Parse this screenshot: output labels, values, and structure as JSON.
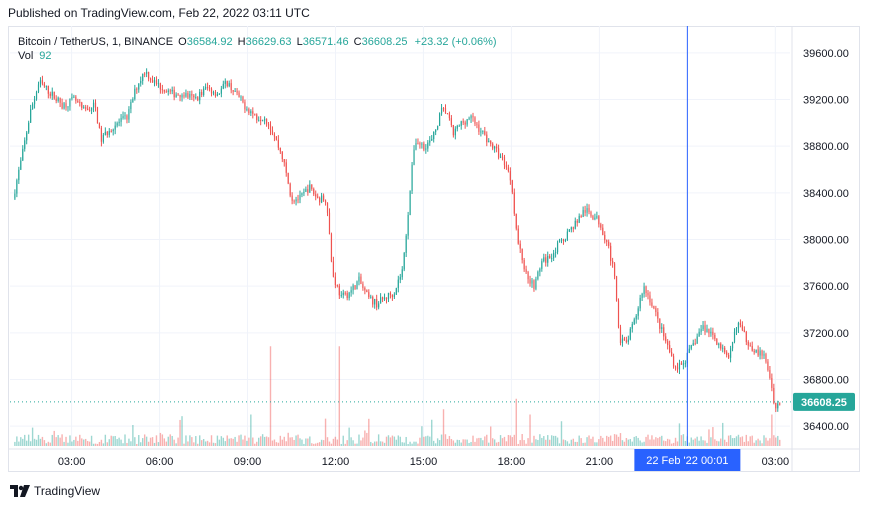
{
  "published": "Published on TradingView.com, Feb 22, 2022 03:11 UTC",
  "legend": {
    "symbol": "Bitcoin / TetherUS, 1, BINANCE",
    "o_label": "O",
    "o_value": "36584.92",
    "h_label": "H",
    "h_value": "36629.63",
    "l_label": "L",
    "l_value": "36571.46",
    "c_label": "C",
    "c_value": "36608.25",
    "change": "+23.32 (+0.06%)",
    "vol_label": "Vol",
    "vol_value": "92"
  },
  "footer": {
    "brand": "TradingView",
    "logo_icon": "tradingview-logo-icon"
  },
  "colors": {
    "up": "#26a69a",
    "down": "#ef5350",
    "crosshair": "#2962ff",
    "price_tag": "#26a69a"
  },
  "chart_data": {
    "type": "candlestick",
    "symbol": "Bitcoin / TetherUS",
    "interval": "1",
    "exchange": "BINANCE",
    "y_ticks": [
      36400,
      36800,
      37200,
      37600,
      38000,
      38400,
      38800,
      39200,
      39600
    ],
    "y_tick_labels": [
      "36400.00",
      "36800.00",
      "37200.00",
      "37600.00",
      "38000.00",
      "38400.00",
      "38800.00",
      "39200.00",
      "39600.00"
    ],
    "ylim": [
      36230,
      39830
    ],
    "x_ticks": [
      "03:00",
      "06:00",
      "09:00",
      "12:00",
      "15:00",
      "18:00",
      "21:00",
      "03:00"
    ],
    "x_tick_hours": [
      3,
      6,
      9,
      12,
      15,
      18,
      21,
      27
    ],
    "xlim_hours": [
      0.9,
      27.5
    ],
    "current_price": 36608.25,
    "current_price_label": "36608.25",
    "crosshair_label": "22 Feb '22   00:01",
    "crosshair_hour": 24.0,
    "price_path": [
      [
        1.0,
        38350
      ],
      [
        1.3,
        38700
      ],
      [
        1.6,
        39100
      ],
      [
        1.9,
        39350
      ],
      [
        2.3,
        39250
      ],
      [
        2.7,
        39150
      ],
      [
        3.1,
        39200
      ],
      [
        3.4,
        39100
      ],
      [
        3.8,
        39150
      ],
      [
        4.0,
        38850
      ],
      [
        4.3,
        38950
      ],
      [
        4.6,
        39000
      ],
      [
        4.9,
        39050
      ],
      [
        5.2,
        39300
      ],
      [
        5.5,
        39450
      ],
      [
        5.8,
        39350
      ],
      [
        6.1,
        39300
      ],
      [
        6.4,
        39250
      ],
      [
        6.8,
        39250
      ],
      [
        7.2,
        39200
      ],
      [
        7.6,
        39300
      ],
      [
        8.0,
        39250
      ],
      [
        8.3,
        39350
      ],
      [
        8.6,
        39250
      ],
      [
        8.9,
        39150
      ],
      [
        9.3,
        39050
      ],
      [
        9.6,
        39050
      ],
      [
        9.9,
        38900
      ],
      [
        10.2,
        38700
      ],
      [
        10.5,
        38350
      ],
      [
        10.8,
        38350
      ],
      [
        11.1,
        38450
      ],
      [
        11.4,
        38350
      ],
      [
        11.7,
        38350
      ],
      [
        11.9,
        37700
      ],
      [
        12.2,
        37500
      ],
      [
        12.5,
        37550
      ],
      [
        12.8,
        37650
      ],
      [
        13.1,
        37500
      ],
      [
        13.4,
        37450
      ],
      [
        13.7,
        37500
      ],
      [
        14.0,
        37550
      ],
      [
        14.3,
        37750
      ],
      [
        14.5,
        38300
      ],
      [
        14.7,
        38850
      ],
      [
        15.0,
        38800
      ],
      [
        15.3,
        38850
      ],
      [
        15.6,
        39100
      ],
      [
        15.8,
        39100
      ],
      [
        16.0,
        38900
      ],
      [
        16.3,
        39000
      ],
      [
        16.6,
        39050
      ],
      [
        16.9,
        38950
      ],
      [
        17.2,
        38850
      ],
      [
        17.5,
        38750
      ],
      [
        17.8,
        38650
      ],
      [
        18.0,
        38500
      ],
      [
        18.2,
        38000
      ],
      [
        18.5,
        37700
      ],
      [
        18.8,
        37600
      ],
      [
        19.0,
        37800
      ],
      [
        19.3,
        37850
      ],
      [
        19.6,
        37950
      ],
      [
        19.9,
        38050
      ],
      [
        20.2,
        38150
      ],
      [
        20.5,
        38250
      ],
      [
        20.8,
        38200
      ],
      [
        21.0,
        38150
      ],
      [
        21.3,
        37950
      ],
      [
        21.5,
        37700
      ],
      [
        21.7,
        37150
      ],
      [
        21.9,
        37100
      ],
      [
        22.2,
        37300
      ],
      [
        22.5,
        37600
      ],
      [
        22.8,
        37450
      ],
      [
        23.0,
        37300
      ],
      [
        23.3,
        37100
      ],
      [
        23.6,
        36900
      ],
      [
        23.9,
        36950
      ],
      [
        24.2,
        37100
      ],
      [
        24.5,
        37250
      ],
      [
        24.8,
        37200
      ],
      [
        25.1,
        37100
      ],
      [
        25.4,
        36950
      ],
      [
        25.7,
        37300
      ],
      [
        26.0,
        37150
      ],
      [
        26.3,
        37050
      ],
      [
        26.6,
        37000
      ],
      [
        26.8,
        36850
      ],
      [
        27.0,
        36550
      ],
      [
        27.15,
        36608
      ]
    ]
  }
}
